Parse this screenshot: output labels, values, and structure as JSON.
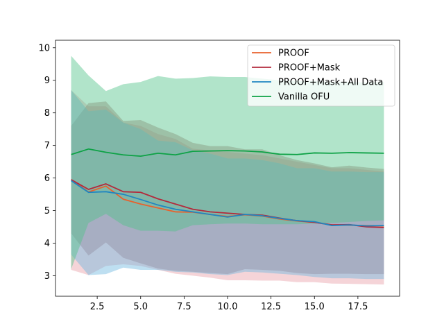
{
  "chart_data": {
    "type": "line",
    "title": "",
    "xlabel": "",
    "ylabel": "",
    "xlim": [
      0.1,
      19.9
    ],
    "ylim": [
      2.37,
      10.23
    ],
    "xticks": [
      2.5,
      5.0,
      7.5,
      10.0,
      12.5,
      15.0,
      17.5
    ],
    "xtick_labels": [
      "2.5",
      "5.0",
      "7.5",
      "10.0",
      "12.5",
      "15.0",
      "17.5"
    ],
    "yticks": [
      3,
      4,
      5,
      6,
      7,
      8,
      9,
      10
    ],
    "ytick_labels": [
      "3",
      "4",
      "5",
      "6",
      "7",
      "8",
      "9",
      "10"
    ],
    "grid": false,
    "legend_position": "top-right",
    "x": [
      1,
      2,
      3,
      4,
      5,
      6,
      7,
      8,
      9,
      10,
      11,
      12,
      13,
      14,
      15,
      16,
      17,
      18,
      19
    ],
    "series": [
      {
        "name": "PROOF",
        "color": "#e8612c",
        "band_color": "#e8a0a8",
        "values": [
          5.95,
          5.57,
          5.75,
          5.35,
          5.2,
          5.08,
          4.96,
          4.95,
          4.88,
          4.82,
          4.87,
          4.83,
          4.74,
          4.68,
          4.64,
          4.56,
          4.55,
          4.54,
          4.53
        ],
        "lower": [
          3.18,
          3.02,
          3.3,
          3.35,
          3.3,
          3.18,
          3.06,
          3.0,
          2.94,
          2.86,
          2.86,
          2.85,
          2.85,
          2.8,
          2.8,
          2.76,
          2.75,
          2.74,
          2.73
        ],
        "upper": [
          8.7,
          8.2,
          8.2,
          7.7,
          7.6,
          7.35,
          7.2,
          6.9,
          6.85,
          6.8,
          6.75,
          6.7,
          6.6,
          6.5,
          6.4,
          6.3,
          6.3,
          6.25,
          6.2
        ]
      },
      {
        "name": "PROOF+Mask",
        "color": "#b3293b",
        "band_color": "#b07070",
        "values": [
          5.95,
          5.65,
          5.82,
          5.58,
          5.56,
          5.36,
          5.2,
          5.04,
          4.96,
          4.92,
          4.88,
          4.86,
          4.77,
          4.69,
          4.64,
          4.56,
          4.57,
          4.5,
          4.48
        ],
        "lower": [
          4.3,
          3.62,
          4.02,
          3.55,
          3.38,
          3.22,
          3.15,
          3.12,
          3.08,
          3.05,
          3.2,
          3.18,
          3.15,
          3.08,
          3.05,
          3.06,
          3.06,
          3.05,
          3.05
        ],
        "upper": [
          7.6,
          8.3,
          8.35,
          7.75,
          7.78,
          7.55,
          7.35,
          7.08,
          6.98,
          6.98,
          6.88,
          6.88,
          6.7,
          6.55,
          6.45,
          6.33,
          6.38,
          6.32,
          6.28
        ]
      },
      {
        "name": "PROOF+Mask+All Data",
        "color": "#1f86c1",
        "band_color": "#6fb8e0",
        "values": [
          5.92,
          5.56,
          5.58,
          5.5,
          5.34,
          5.17,
          5.04,
          4.96,
          4.88,
          4.8,
          4.88,
          4.84,
          4.76,
          4.69,
          4.66,
          4.54,
          4.56,
          4.53,
          4.54
        ],
        "lower": [
          3.65,
          3.02,
          3.05,
          3.25,
          3.18,
          3.18,
          3.12,
          3.1,
          3.05,
          3.02,
          3.12,
          3.1,
          3.06,
          3.02,
          2.96,
          2.92,
          2.92,
          2.9,
          2.9
        ],
        "upper": [
          8.7,
          8.05,
          8.1,
          7.7,
          7.5,
          7.15,
          7.1,
          6.85,
          6.75,
          6.6,
          6.6,
          6.55,
          6.45,
          6.3,
          6.3,
          6.2,
          6.2,
          6.18,
          6.18
        ]
      },
      {
        "name": "Vanilla OFU",
        "color": "#0ea246",
        "band_color": "#52c48a",
        "values": [
          6.72,
          6.89,
          6.79,
          6.71,
          6.67,
          6.76,
          6.71,
          6.82,
          6.83,
          6.84,
          6.83,
          6.8,
          6.73,
          6.72,
          6.77,
          6.76,
          6.78,
          6.77,
          6.76
        ],
        "lower": [
          3.2,
          4.62,
          4.9,
          4.55,
          4.38,
          4.38,
          4.36,
          4.55,
          4.58,
          4.6,
          4.6,
          4.58,
          4.58,
          4.58,
          4.6,
          4.62,
          4.65,
          4.68,
          4.7
        ],
        "upper": [
          9.75,
          9.15,
          8.67,
          8.88,
          8.95,
          9.13,
          9.05,
          9.07,
          9.12,
          9.1,
          9.1,
          9.05,
          9.0,
          8.98,
          8.97,
          8.95,
          8.95,
          8.93,
          8.95
        ]
      }
    ]
  }
}
